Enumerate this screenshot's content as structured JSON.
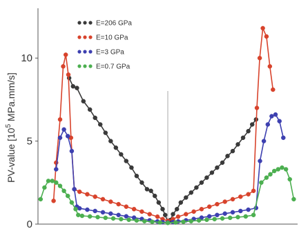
{
  "chart_data": {
    "type": "line",
    "title": "",
    "xlabel": "",
    "ylabel": {
      "pre": "PV-value [10",
      "sup": "5",
      "post": " MPa.mm/s]"
    },
    "ylim": [
      0,
      13
    ],
    "xlim": [
      0,
      100
    ],
    "yticks": [
      0,
      5,
      10
    ],
    "center_line_x": 50,
    "grid": false,
    "legend_position": "top-left",
    "series": [
      {
        "name": "E=206 GPa",
        "color": "#3a3a3a",
        "x": [
          12,
          13.5,
          15,
          17.5,
          20,
          22,
          24,
          26,
          28,
          30,
          32,
          34,
          36,
          38,
          40,
          42,
          43.5,
          45,
          46.5,
          48,
          49,
          50,
          51,
          52,
          53.5,
          55,
          57,
          59,
          61,
          63,
          65,
          67,
          69,
          71,
          73,
          75,
          77,
          79,
          81,
          82.5,
          84
        ],
        "y": [
          8.8,
          8.3,
          8.2,
          7.4,
          6.9,
          6.4,
          6.0,
          5.5,
          5.0,
          4.6,
          4.2,
          3.8,
          3.4,
          2.9,
          2.5,
          2.1,
          2.0,
          1.7,
          1.3,
          0.9,
          0.55,
          0.15,
          0.25,
          0.6,
          0.9,
          1.3,
          1.6,
          1.9,
          2.2,
          2.5,
          2.8,
          3.1,
          3.4,
          3.7,
          4.1,
          4.4,
          4.8,
          5.2,
          5.6,
          6.0,
          6.3
        ]
      },
      {
        "name": "E=10 GPa",
        "color": "#d8432c",
        "x": [
          6,
          7,
          8.5,
          9.7,
          10.7,
          11.7,
          12.7,
          14,
          16,
          19,
          22,
          25,
          28,
          31,
          34,
          37,
          40,
          43,
          46,
          48,
          50,
          52,
          54,
          57,
          60,
          63,
          66,
          69,
          72,
          75,
          78,
          81,
          83,
          84.3,
          85.4,
          86.6,
          88,
          89.3,
          90.5
        ],
        "y": [
          1.4,
          3.7,
          6.3,
          9.5,
          10.2,
          9.0,
          5.2,
          2.1,
          1.95,
          1.8,
          1.65,
          1.5,
          1.35,
          1.2,
          1.05,
          0.9,
          0.75,
          0.6,
          0.45,
          0.3,
          0.2,
          0.3,
          0.45,
          0.6,
          0.75,
          0.9,
          1.05,
          1.2,
          1.35,
          1.5,
          1.65,
          1.8,
          2.0,
          7.0,
          10.0,
          11.8,
          11.3,
          9.5,
          8.1
        ]
      },
      {
        "name": "E=3 GPa",
        "color": "#3d40b0",
        "x": [
          7,
          8.5,
          10,
          11.5,
          13,
          14,
          15,
          16,
          19,
          22,
          25,
          28,
          31,
          34,
          37,
          40,
          43,
          46,
          48,
          50,
          52,
          54,
          57,
          60,
          63,
          66,
          69,
          72,
          75,
          78,
          81,
          84,
          85.5,
          87,
          88.5,
          90,
          91.5,
          93,
          94.5
        ],
        "y": [
          3.3,
          5.2,
          5.7,
          5.3,
          4.4,
          2.1,
          1.05,
          0.95,
          0.87,
          0.79,
          0.71,
          0.63,
          0.55,
          0.47,
          0.39,
          0.31,
          0.23,
          0.16,
          0.12,
          0.1,
          0.12,
          0.16,
          0.23,
          0.31,
          0.39,
          0.47,
          0.55,
          0.63,
          0.71,
          0.79,
          0.87,
          0.97,
          3.8,
          5.0,
          6.0,
          6.5,
          6.6,
          6.2,
          5.2
        ]
      },
      {
        "name": "E=0.7 GPa",
        "color": "#4caf50",
        "x": [
          1,
          2.5,
          4,
          5.5,
          7,
          8.5,
          10,
          11.5,
          13,
          14.5,
          15.5,
          17,
          20,
          23,
          26,
          29,
          32,
          35,
          38,
          41,
          44,
          47,
          50,
          53,
          56,
          59,
          62,
          65,
          68,
          71,
          74,
          77,
          80,
          83,
          86,
          88,
          89.5,
          91,
          92.5,
          94,
          95.5,
          97,
          98.5
        ],
        "y": [
          1.5,
          2.2,
          2.6,
          2.6,
          2.5,
          2.3,
          2.0,
          1.7,
          1.3,
          0.9,
          0.55,
          0.5,
          0.46,
          0.42,
          0.38,
          0.34,
          0.3,
          0.26,
          0.22,
          0.18,
          0.14,
          0.1,
          0.07,
          0.1,
          0.14,
          0.18,
          0.22,
          0.26,
          0.3,
          0.34,
          0.38,
          0.42,
          0.46,
          0.55,
          2.5,
          2.8,
          3.0,
          3.2,
          3.3,
          3.4,
          3.3,
          2.7,
          1.5
        ]
      }
    ]
  }
}
